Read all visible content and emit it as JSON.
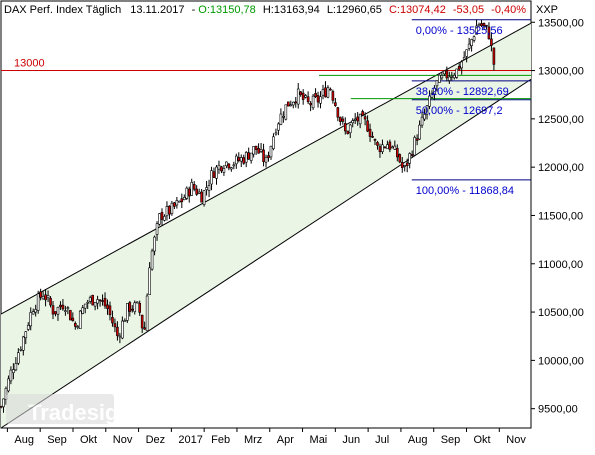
{
  "header": {
    "title": "DAX Perf. Index Täglich",
    "date": "13.11.2017",
    "open": "O:13150,78",
    "high": "H:13163,94",
    "low": "L:12960,65",
    "close": "C:13074,42",
    "change": "-53,05",
    "change_pct": "-0,40%",
    "symbol": "XXP"
  },
  "watermark": "Tradesignal online",
  "colors": {
    "up_candle": "#ffffff",
    "down_candle": "#cc0000",
    "outline": "#000000",
    "channel_fill": "#eaf5e6",
    "fib_line": "#000080",
    "fib_text": "#0000cc",
    "ref_line": "#cc0000",
    "green_line": "#009900",
    "open_text": "#009900",
    "close_text": "#cc0000"
  },
  "chart_data": {
    "type": "candlestick",
    "title": "DAX Perf. Index Täglich",
    "x_ticks": [
      "Aug",
      "Sep",
      "Okt",
      "Nov",
      "Dez",
      "2017",
      "Feb",
      "Mrz",
      "Apr",
      "Mai",
      "Jun",
      "Jul",
      "Aug",
      "Sep",
      "Okt",
      "Nov"
    ],
    "y_ticks": [
      "9500,00",
      "10000,00",
      "10500,00",
      "11000,00",
      "11500,00",
      "12000,00",
      "12500,00",
      "13000,00",
      "13500,00"
    ],
    "y_tick_values": [
      9500,
      10000,
      10500,
      11000,
      11500,
      12000,
      12500,
      13000,
      13500
    ],
    "ylim": [
      9300,
      13720
    ],
    "reference_line": {
      "label": "13000",
      "value": 13000
    },
    "fibonacci": [
      {
        "label": "0,00% - 13525,56",
        "value": 13525.56
      },
      {
        "label": "38,20% - 12892,69",
        "value": 12892.69
      },
      {
        "label": "50,00% - 12697,2",
        "value": 12697.2
      },
      {
        "label": "100,00% - 11868,84",
        "value": 11868.84
      }
    ],
    "channel": {
      "upper_start": [
        0,
        10480
      ],
      "upper_end": [
        1,
        13490
      ],
      "lower_start": [
        0,
        9300
      ],
      "lower_end": [
        1,
        12910
      ]
    },
    "close_path": [
      [
        0.0,
        9520
      ],
      [
        0.02,
        9900
      ],
      [
        0.04,
        10200
      ],
      [
        0.06,
        10550
      ],
      [
        0.08,
        10700
      ],
      [
        0.1,
        10500
      ],
      [
        0.12,
        10600
      ],
      [
        0.14,
        10350
      ],
      [
        0.16,
        10600
      ],
      [
        0.18,
        10650
      ],
      [
        0.2,
        10550
      ],
      [
        0.22,
        10250
      ],
      [
        0.24,
        10550
      ],
      [
        0.26,
        10550
      ],
      [
        0.27,
        10250
      ],
      [
        0.28,
        11000
      ],
      [
        0.3,
        11500
      ],
      [
        0.32,
        11550
      ],
      [
        0.34,
        11650
      ],
      [
        0.36,
        11800
      ],
      [
        0.38,
        11700
      ],
      [
        0.4,
        11950
      ],
      [
        0.42,
        12050
      ],
      [
        0.44,
        12050
      ],
      [
        0.46,
        12100
      ],
      [
        0.48,
        12200
      ],
      [
        0.5,
        12050
      ],
      [
        0.52,
        12450
      ],
      [
        0.54,
        12650
      ],
      [
        0.56,
        12750
      ],
      [
        0.58,
        12650
      ],
      [
        0.6,
        12700
      ],
      [
        0.62,
        12850
      ],
      [
        0.64,
        12500
      ],
      [
        0.65,
        12350
      ],
      [
        0.67,
        12500
      ],
      [
        0.69,
        12450
      ],
      [
        0.71,
        12200
      ],
      [
        0.73,
        12250
      ],
      [
        0.75,
        12100
      ],
      [
        0.76,
        11950
      ],
      [
        0.78,
        12250
      ],
      [
        0.8,
        12550
      ],
      [
        0.82,
        12850
      ],
      [
        0.84,
        12950
      ],
      [
        0.86,
        13000
      ],
      [
        0.88,
        13200
      ],
      [
        0.9,
        13500
      ],
      [
        0.92,
        13400
      ],
      [
        0.93,
        13074
      ]
    ]
  }
}
